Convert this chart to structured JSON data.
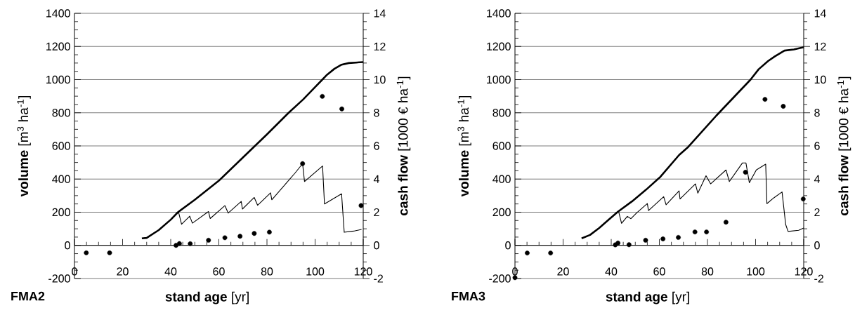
{
  "chart_data": [
    {
      "type": "line",
      "title": "FMA2",
      "xlabel": "**stand age** [yr]",
      "ylabel": "**volume** [m$^{3}$ ha$^{-1}$]",
      "y2label": "**cash flow**  [1000 € ha$^{-1}$]",
      "xlim": [
        0,
        120
      ],
      "xticks": [
        0,
        20,
        40,
        60,
        80,
        100,
        120
      ],
      "ylim": [
        -200,
        1400
      ],
      "yticks": [
        -200,
        0,
        200,
        400,
        600,
        800,
        1000,
        1200,
        1400
      ],
      "y2lim": [
        -2,
        14
      ],
      "y2ticks": [
        -2,
        0,
        2,
        4,
        6,
        8,
        10,
        12,
        14
      ],
      "grid": "y",
      "series": [
        {
          "type": "line",
          "color": "#000000",
          "x": [
            28,
            30,
            35,
            40,
            43,
            50,
            60,
            70,
            75,
            80,
            89,
            95,
            100,
            103,
            105,
            108,
            111,
            114,
            120
          ],
          "values": [
            42,
            45,
            92,
            155,
            200,
            275,
            390,
            530,
            600,
            670,
            800,
            880,
            955,
            1000,
            1030,
            1065,
            1090,
            1100,
            1106
          ]
        },
        {
          "type": "line",
          "axis": "y2",
          "color": "#000000",
          "x": [
            43.2,
            44.5,
            47.9,
            49,
            55.7,
            56.4,
            62.5,
            63.9,
            69.3,
            69.8,
            74.7,
            76.1,
            81.5,
            82,
            91.7,
            94.8,
            95.6,
            103.1,
            103.9,
            111,
            112.1,
            116,
            119.3
          ],
          "values": [
            2.04,
            1.27,
            1.76,
            1.34,
            2.04,
            1.62,
            2.4,
            1.95,
            2.65,
            2.19,
            2.89,
            2.42,
            3.17,
            2.75,
            4.37,
            4.93,
            3.85,
            4.79,
            2.5,
            3.11,
            0.79,
            0.86,
            0.96
          ]
        },
        {
          "type": "scatter",
          "axis": "y2",
          "marker": "circle",
          "color": "#000000",
          "x": [
            4.9,
            14.6,
            42.2,
            43.6,
            48.1,
            55.7,
            62.5,
            68.8,
            74.7,
            81,
            94.8,
            103,
            111.1,
            119.1
          ],
          "values": [
            -0.45,
            -0.45,
            0,
            0.11,
            0.1,
            0.31,
            0.46,
            0.55,
            0.72,
            0.8,
            4.93,
            8.99,
            8.23,
            2.4
          ]
        }
      ]
    },
    {
      "type": "line",
      "title": "FMA3",
      "xlabel": "**stand age** [yr]",
      "ylabel": "**volume** [m$^{3}$ ha$^{-1}$]",
      "y2label": "**cash flow**  [1000 € ha$^{-1}$]",
      "xlim": [
        0,
        120
      ],
      "xticks": [
        0,
        20,
        40,
        60,
        80,
        100,
        120
      ],
      "ylim": [
        -200,
        1400
      ],
      "yticks": [
        -200,
        0,
        200,
        400,
        600,
        800,
        1000,
        1200,
        1400
      ],
      "y2lim": [
        -2,
        14
      ],
      "y2ticks": [
        -2,
        0,
        2,
        4,
        6,
        8,
        10,
        12,
        14
      ],
      "grid": "y",
      "series": [
        {
          "type": "line",
          "color": "#000000",
          "x": [
            27.7,
            31.2,
            35,
            38.9,
            42.8,
            48.7,
            54.5,
            60.4,
            68.2,
            72,
            83.7,
            97.9,
            101.3,
            105.2,
            108,
            112,
            115.9,
            120
          ],
          "values": [
            42,
            63,
            105,
            154,
            203,
            266,
            336,
            413,
            545,
            594,
            783,
            1000,
            1063,
            1112,
            1140,
            1175,
            1182,
            1196
          ]
        },
        {
          "type": "line",
          "axis": "y2",
          "color": "#000000",
          "x": [
            43.1,
            44.3,
            46.7,
            48.2,
            50.6,
            55,
            55.5,
            61.8,
            62.8,
            68.2,
            68.6,
            75,
            76,
            79.4,
            81.3,
            87.7,
            89.1,
            94.5,
            96,
            97.4,
            100.3,
            104.2,
            104.7,
            107.6,
            111,
            112.5,
            113.5,
            117.9,
            120
          ],
          "values": [
            2.03,
            1.33,
            1.75,
            1.61,
            1.96,
            2.52,
            2.1,
            2.94,
            2.45,
            3.29,
            2.8,
            3.71,
            3.15,
            4.2,
            3.71,
            4.55,
            3.85,
            4.97,
            4.97,
            3.78,
            4.55,
            4.9,
            2.52,
            2.87,
            3.22,
            1.26,
            0.84,
            0.91,
            1.05
          ]
        },
        {
          "type": "scatter",
          "axis": "y2",
          "marker": "circle",
          "color": "#000000",
          "x": [
            0,
            5.1,
            14.8,
            41.7,
            42.8,
            47.4,
            54.3,
            61.5,
            67.9,
            74.8,
            79.6,
            87.7,
            95.8,
            103.9,
            111.5,
            119.8
          ],
          "values": [
            -1.95,
            -0.46,
            -0.46,
            0.03,
            0.14,
            0.04,
            0.31,
            0.39,
            0.48,
            0.81,
            0.81,
            1.4,
            4.41,
            8.81,
            8.39,
            2.8
          ]
        }
      ]
    }
  ]
}
